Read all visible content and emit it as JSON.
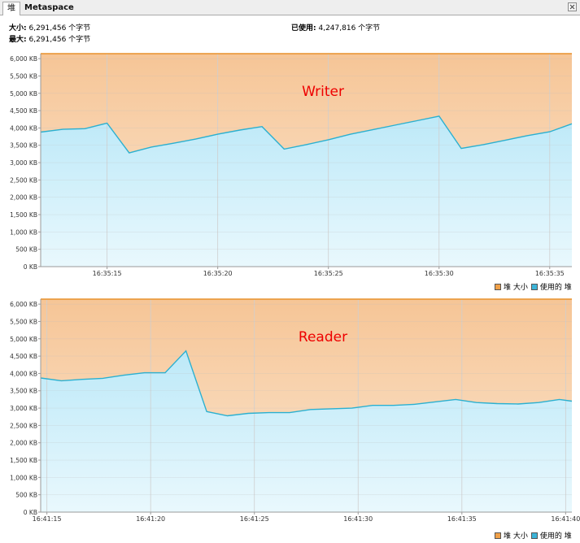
{
  "tabs": {
    "active": "堆",
    "other": "Metaspace"
  },
  "summary": {
    "size_label": "大小:",
    "size_value": "6,291,456 个字节",
    "max_label": "最大:",
    "max_value": "6,291,456 个字节",
    "used_label": "已使用:",
    "used_value": "4,247,816 个字节"
  },
  "legend": {
    "heap_size": "堆 大小",
    "used_heap": "使用的 堆"
  },
  "colors": {
    "heap_size": "#f0a048",
    "used_heap": "#3cb4d8",
    "annotation": "#ee0000"
  },
  "chart_data": [
    {
      "type": "area",
      "annotation": "Writer",
      "ylim": [
        0,
        6144
      ],
      "yticks": [
        0,
        500,
        1000,
        1500,
        2000,
        2500,
        3000,
        3500,
        4000,
        4500,
        5000,
        5500,
        6000
      ],
      "ytick_labels": [
        "0 KB",
        "500 KB",
        "1,000 KB",
        "1,500 KB",
        "2,000 KB",
        "2,500 KB",
        "3,000 KB",
        "3,500 KB",
        "4,000 KB",
        "4,500 KB",
        "5,000 KB",
        "5,500 KB",
        "6,000 KB"
      ],
      "xlim": [
        0,
        24
      ],
      "xticks": [
        3,
        8,
        13,
        18,
        23
      ],
      "xtick_labels": [
        "16:35:15",
        "16:35:20",
        "16:35:25",
        "16:35:30",
        "16:35:35"
      ],
      "grid": true,
      "legend_position": "bottom-right",
      "series": [
        {
          "name": "堆 大小",
          "x": [
            0,
            24
          ],
          "values": [
            6144,
            6144
          ]
        },
        {
          "name": "使用的 堆",
          "x": [
            0,
            1,
            2,
            3,
            4,
            5,
            6,
            7,
            8,
            9,
            10,
            11,
            12,
            13,
            14,
            15,
            16,
            17,
            18,
            19,
            20,
            21,
            22,
            23,
            24
          ],
          "values": [
            3880,
            3960,
            3980,
            4140,
            3280,
            3450,
            3560,
            3680,
            3820,
            3940,
            4040,
            3390,
            3520,
            3660,
            3820,
            3950,
            4080,
            4210,
            4340,
            3410,
            3520,
            3650,
            3780,
            3890,
            4120
          ]
        }
      ]
    },
    {
      "type": "area",
      "annotation": "Reader",
      "ylim": [
        0,
        6144
      ],
      "yticks": [
        0,
        500,
        1000,
        1500,
        2000,
        2500,
        3000,
        3500,
        4000,
        4500,
        5000,
        5500,
        6000
      ],
      "ytick_labels": [
        "0 KB",
        "500 KB",
        "1,000 KB",
        "1,500 KB",
        "2,000 KB",
        "2,500 KB",
        "3,000 KB",
        "3,500 KB",
        "4,000 KB",
        "4,500 KB",
        "5,000 KB",
        "5,500 KB",
        "6,000 KB"
      ],
      "xlim": [
        0,
        25.6
      ],
      "xticks": [
        0.3,
        5.3,
        10.3,
        15.3,
        20.3,
        25.3
      ],
      "xtick_labels": [
        "16:41:15",
        "16:41:20",
        "16:41:25",
        "16:41:30",
        "16:41:35",
        "16:41:40"
      ],
      "grid": true,
      "legend_position": "bottom-right",
      "series": [
        {
          "name": "堆 大小",
          "x": [
            0,
            25.6
          ],
          "values": [
            6144,
            6144
          ]
        },
        {
          "name": "使用的 堆",
          "x": [
            0,
            1,
            2,
            3,
            4,
            5,
            6,
            7,
            8,
            9,
            10,
            11,
            12,
            13,
            14,
            15,
            16,
            17,
            18,
            19,
            20,
            21,
            22,
            23,
            24,
            25,
            25.6
          ],
          "values": [
            3870,
            3790,
            3830,
            3860,
            3950,
            4020,
            4020,
            4650,
            2900,
            2780,
            2850,
            2870,
            2870,
            2960,
            2980,
            3000,
            3080,
            3080,
            3110,
            3180,
            3250,
            3160,
            3130,
            3120,
            3160,
            3250,
            3200
          ]
        }
      ]
    }
  ]
}
